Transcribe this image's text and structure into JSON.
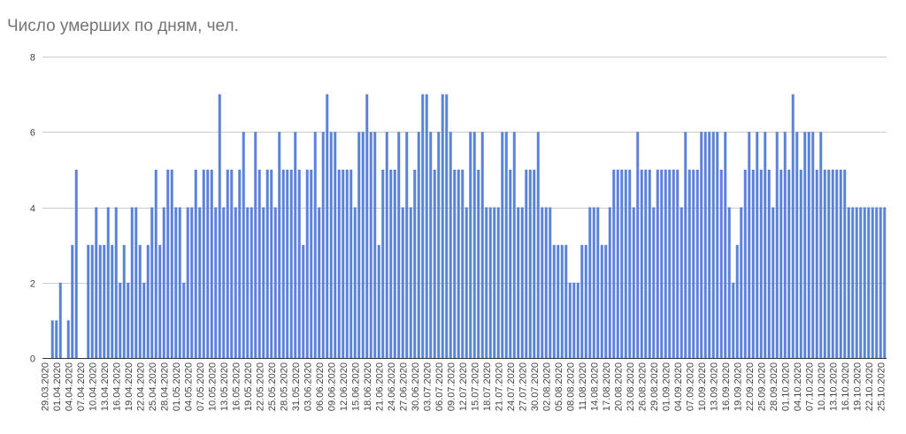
{
  "chart_data": {
    "type": "bar",
    "title": "Число умерших по дням, чел.",
    "xlabel": "",
    "ylabel": "",
    "ylim": [
      0,
      8
    ],
    "yticks": [
      "0",
      "2",
      "4",
      "6",
      "8"
    ],
    "grid": true,
    "legend": "none",
    "bar_color": "#5b82d9",
    "tick_every_n_bars": 3,
    "tick_labels": [
      "29.03.2020",
      "01.04.2020",
      "04.04.2020",
      "07.04.2020",
      "10.04.2020",
      "13.04.2020",
      "16.04.2020",
      "19.04.2020",
      "22.04.2020",
      "25.04.2020",
      "28.04.2020",
      "01.05.2020",
      "04.05.2020",
      "07.05.2020",
      "10.05.2020",
      "13.05.2020",
      "16.05.2020",
      "19.05.2020",
      "22.05.2020",
      "25.05.2020",
      "28.05.2020",
      "31.05.2020",
      "03.06.2020",
      "06.06.2020",
      "09.06.2020",
      "12.06.2020",
      "15.06.2020",
      "18.06.2020",
      "21.06.2020",
      "24.06.2020",
      "27.06.2020",
      "30.06.2020",
      "03.07.2020",
      "06.07.2020",
      "09.07.2020",
      "12.07.2020",
      "15.07.2020",
      "18.07.2020",
      "21.07.2020",
      "24.07.2020",
      "27.07.2020",
      "30.07.2020",
      "02.08.2020",
      "05.08.2020",
      "08.08.2020",
      "11.08.2020",
      "14.08.2020",
      "17.08.2020",
      "20.08.2020",
      "23.08.2020",
      "26.08.2020",
      "29.08.2020",
      "01.09.2020",
      "04.09.2020",
      "07.09.2020",
      "10.09.2020",
      "13.09.2020",
      "16.09.2020",
      "19.09.2020",
      "22.09.2020",
      "25.09.2020",
      "28.09.2020",
      "01.10.2020",
      "04.10.2020",
      "07.10.2020",
      "10.10.2020",
      "13.10.2020",
      "16.10.2020",
      "19.10.2020",
      "22.10.2020",
      "25.10.2020"
    ],
    "values": [
      0,
      0,
      1,
      1,
      2,
      0,
      1,
      3,
      5,
      0,
      0,
      3,
      3,
      4,
      3,
      3,
      4,
      3,
      4,
      2,
      3,
      2,
      4,
      4,
      3,
      2,
      3,
      4,
      5,
      3,
      4,
      5,
      5,
      4,
      4,
      2,
      4,
      4,
      5,
      4,
      5,
      5,
      5,
      4,
      7,
      4,
      5,
      5,
      4,
      5,
      6,
      4,
      4,
      6,
      5,
      4,
      5,
      5,
      4,
      6,
      5,
      5,
      5,
      6,
      5,
      3,
      5,
      5,
      6,
      4,
      6,
      7,
      6,
      6,
      5,
      5,
      5,
      5,
      4,
      6,
      6,
      7,
      6,
      6,
      3,
      5,
      6,
      5,
      5,
      6,
      4,
      6,
      4,
      5,
      6,
      7,
      7,
      6,
      5,
      6,
      7,
      7,
      6,
      5,
      5,
      5,
      4,
      6,
      6,
      5,
      6,
      4,
      4,
      4,
      4,
      6,
      6,
      5,
      6,
      4,
      4,
      5,
      5,
      5,
      6,
      4,
      4,
      4,
      3,
      3,
      3,
      3,
      2,
      2,
      2,
      3,
      3,
      4,
      4,
      4,
      3,
      3,
      4,
      5,
      5,
      5,
      5,
      5,
      4,
      6,
      5,
      5,
      5,
      4,
      5,
      5,
      5,
      5,
      5,
      5,
      4,
      6,
      5,
      5,
      5,
      6,
      6,
      6,
      6,
      6,
      5,
      6,
      4,
      2,
      3,
      4,
      5,
      6,
      5,
      6,
      5,
      6,
      5,
      4,
      6,
      5,
      6,
      5,
      7,
      6,
      5,
      6,
      6,
      6,
      5,
      6,
      5,
      5,
      5,
      5,
      5,
      5,
      4,
      4,
      4,
      4,
      4,
      4,
      4,
      4,
      4,
      4
    ]
  }
}
